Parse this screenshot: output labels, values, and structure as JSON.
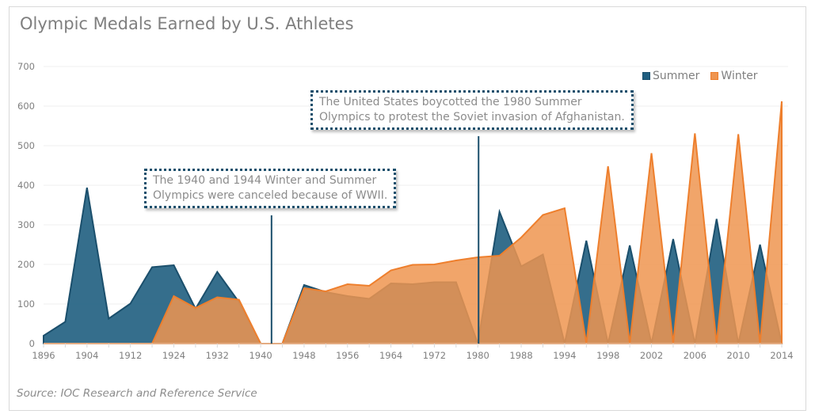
{
  "title": "Olympic Medals Earned by U.S. Athletes",
  "source": "Source: IOC Research and Reference Service",
  "colors": {
    "summer": "#1b4f6c",
    "summer_fill": "#1f5e80",
    "winter": "#ee7f2d",
    "winter_fill": "#ef9550",
    "grid": "#efefef",
    "text": "#7f7f7f"
  },
  "callouts": [
    {
      "text_line1": "The 1940 and 1944 Winter and Summer",
      "text_line2": "Olympics were canceled because of WWII.",
      "points_to": "1942"
    },
    {
      "text_line1": "The United States boycotted the 1980 Summer",
      "text_line2": "Olympics to protest the Soviet invasion of Afghanistan.",
      "points_to": "1980"
    }
  ],
  "chart_data": {
    "type": "area",
    "title": "Olympic Medals Earned by U.S. Athletes",
    "xlabel": "",
    "ylabel": "",
    "ylim": [
      0,
      700
    ],
    "yticks": [
      0,
      100,
      200,
      300,
      400,
      500,
      600,
      700
    ],
    "grid": true,
    "legend": "top-right",
    "categories": [
      "1896",
      "1900",
      "1904",
      "1908",
      "1912",
      "1920",
      "1924",
      "1928",
      "1932",
      "1936",
      "1940",
      "1944",
      "1948",
      "1952",
      "1956",
      "1960",
      "1964",
      "1968",
      "1972",
      "1976",
      "1980",
      "1984",
      "1988",
      "1992",
      "1994",
      "1996",
      "1998",
      "2000",
      "2002",
      "2004",
      "2006",
      "2008",
      "2010",
      "2012",
      "2014"
    ],
    "xtick_labels": [
      "1896",
      "1904",
      "1912",
      "1924",
      "1932",
      "1940",
      "1948",
      "1956",
      "1964",
      "1972",
      "1980",
      "1988",
      "1994",
      "1998",
      "2002",
      "2006",
      "2010",
      "2014"
    ],
    "series": [
      {
        "name": "Summer",
        "values": [
          20,
          55,
          394,
          63,
          101,
          193,
          198,
          88,
          181,
          105,
          0,
          0,
          148,
          130,
          120,
          113,
          152,
          150,
          155,
          155,
          0,
          333,
          195,
          225,
          0,
          260,
          0,
          248,
          0,
          264,
          0,
          315,
          0,
          250,
          0
        ]
      },
      {
        "name": "Winter",
        "values": [
          0,
          0,
          0,
          0,
          0,
          0,
          120,
          90,
          117,
          111,
          0,
          0,
          140,
          132,
          150,
          146,
          185,
          199,
          200,
          210,
          218,
          222,
          268,
          325,
          342,
          0,
          448,
          0,
          481,
          0,
          531,
          0,
          529,
          0,
          612
        ]
      }
    ],
    "annotations": [
      "The 1940 and 1944 Winter and Summer Olympics were canceled because of WWII.",
      "The United States boycotted the 1980 Summer Olympics to protest the Soviet invasion of Afghanistan."
    ]
  }
}
